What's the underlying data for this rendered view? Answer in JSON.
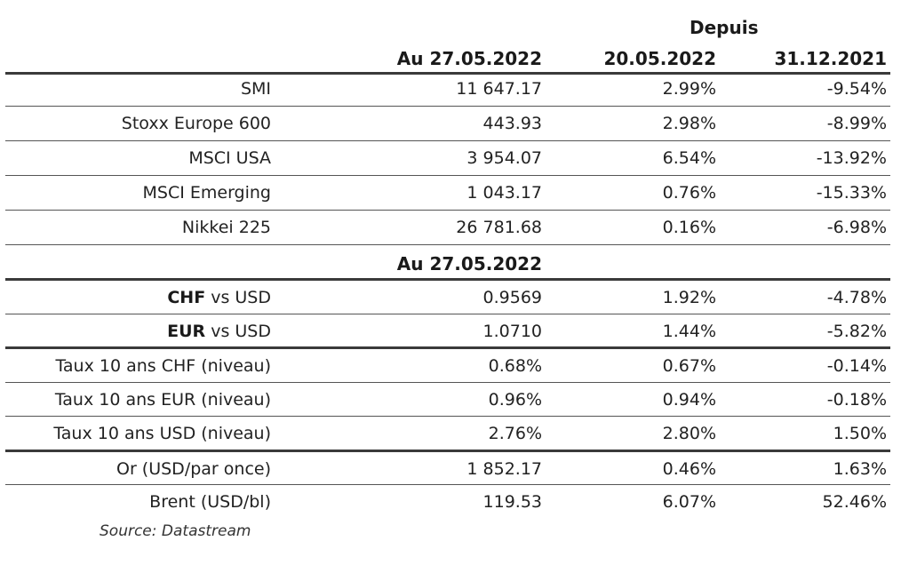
{
  "header": {
    "depuis": "Depuis",
    "col1": "Au 27.05.2022",
    "col2": "20.05.2022",
    "col3": "31.12.2021"
  },
  "indices": [
    {
      "label": "SMI",
      "value": "11 647.17",
      "week": "2.99%",
      "ytd": "-9.54%"
    },
    {
      "label": "Stoxx Europe 600",
      "value": "443.93",
      "week": "2.98%",
      "ytd": "-8.99%"
    },
    {
      "label": "MSCI USA",
      "value": "3 954.07",
      "week": "6.54%",
      "ytd": "-13.92%"
    },
    {
      "label": "MSCI Emerging",
      "value": "1 043.17",
      "week": "0.76%",
      "ytd": "-15.33%"
    },
    {
      "label": "Nikkei 225",
      "value": "26 781.68",
      "week": "0.16%",
      "ytd": "-6.98%"
    }
  ],
  "subheader": "Au 27.05.2022",
  "currencies": [
    {
      "bold": "CHF",
      "rest": " vs USD",
      "value": "0.9569",
      "week": "1.92%",
      "ytd": "-4.78%"
    },
    {
      "bold": "EUR",
      "rest": " vs USD",
      "value": "1.0710",
      "week": "1.44%",
      "ytd": "-5.82%"
    }
  ],
  "rates": [
    {
      "label": "Taux 10 ans CHF (niveau)",
      "value": "0.68%",
      "week": "0.67%",
      "ytd": "-0.14%"
    },
    {
      "label": "Taux 10 ans EUR (niveau)",
      "value": "0.96%",
      "week": "0.94%",
      "ytd": "-0.18%"
    },
    {
      "label": "Taux 10 ans USD (niveau)",
      "value": "2.76%",
      "week": "2.80%",
      "ytd": "1.50%"
    }
  ],
  "commodities": [
    {
      "label": "Or (USD/par once)",
      "value": "1 852.17",
      "week": "0.46%",
      "ytd": "1.63%"
    },
    {
      "label": "Brent (USD/bl)",
      "value": "119.53",
      "week": "6.07%",
      "ytd": "52.46%"
    }
  ],
  "source": "Source: Datastream"
}
